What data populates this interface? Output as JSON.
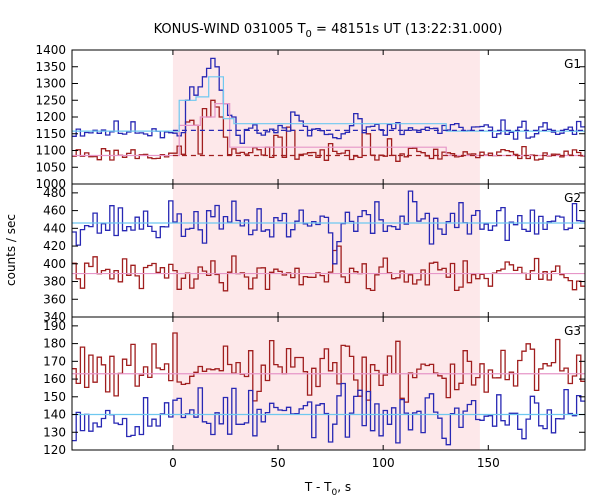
{
  "chart_data": {
    "type": "line",
    "title_main": "KONUS-WIND 031005 T",
    "title_sub": "0",
    "title_rest": " = 48151s UT (13:22:31.000)",
    "xlabel_main": "T - T",
    "xlabel_sub": "0",
    "xlabel_rest": ", s",
    "ylabel": "counts / sec",
    "xlim": [
      -48,
      196
    ],
    "x_ticks": [
      0,
      50,
      100,
      150
    ],
    "shaded_interval": [
      0,
      146
    ],
    "bin_width": 2,
    "colors": {
      "blue_series": "#2828b4",
      "red_series": "#a01e1e",
      "blue_fit": "#6ec8f0",
      "red_fit": "#e696c8",
      "shade": "#fde8ea"
    },
    "panels": [
      {
        "label": "G1",
        "ylim": [
          1000,
          1400
        ],
        "yticks": [
          1000,
          1050,
          1100,
          1150,
          1200,
          1250,
          1300,
          1350,
          1400
        ],
        "blue": {
          "base": 1160,
          "noise": 14,
          "seed": 11,
          "peaks": [
            [
              6,
              1250
            ],
            [
              8,
              1290
            ],
            [
              10,
              1265
            ],
            [
              12,
              1290
            ],
            [
              14,
              1320
            ],
            [
              16,
              1345
            ],
            [
              18,
              1375
            ],
            [
              20,
              1350
            ],
            [
              22,
              1280
            ],
            [
              24,
              1240
            ],
            [
              26,
              1205
            ],
            [
              28,
              1200
            ],
            [
              56,
              1215
            ],
            [
              58,
              1205
            ],
            [
              86,
              1210
            ],
            [
              88,
              1195
            ]
          ]
        },
        "red": {
          "base": 1090,
          "noise": 11,
          "seed": 23,
          "peaks": [
            [
              6,
              1185
            ],
            [
              8,
              1190
            ],
            [
              10,
              1175
            ],
            [
              14,
              1225
            ],
            [
              16,
              1200
            ],
            [
              18,
              1250
            ],
            [
              20,
              1230
            ],
            [
              22,
              1200
            ],
            [
              24,
              1140
            ],
            [
              48,
              1145
            ],
            [
              50,
              1140
            ],
            [
              54,
              1170
            ],
            [
              56,
              1160
            ],
            [
              90,
              1160
            ],
            [
              92,
              1150
            ],
            [
              102,
              1135
            ]
          ]
        },
        "blue_fit": {
          "type": "step",
          "value": 1158,
          "box": [
            [
              3,
              11,
              1250
            ],
            [
              11,
              17,
              1260
            ],
            [
              17,
              24,
              1320
            ],
            [
              24,
              29,
              1195
            ],
            [
              29,
              130,
              1180
            ]
          ]
        },
        "red_fit": {
          "type": "step",
          "value": 1085,
          "box": [
            [
              3,
              13,
              1175
            ],
            [
              13,
              20,
              1200
            ],
            [
              20,
              27,
              1240
            ],
            [
              27,
              130,
              1110
            ]
          ]
        },
        "blue_bkg": 1160,
        "red_bkg": 1085
      },
      {
        "label": "G2",
        "ylim": [
          340,
          490
        ],
        "yticks": [
          340,
          360,
          380,
          400,
          420,
          440,
          460,
          480
        ],
        "blue": {
          "base": 446,
          "noise": 11,
          "seed": 37,
          "peaks": [
            [
              76,
              400
            ],
            [
              78,
              425
            ],
            [
              112,
              482
            ],
            [
              114,
              470
            ]
          ]
        },
        "red": {
          "base": 389,
          "noise": 9,
          "seed": 41,
          "peaks": [
            [
              76,
              415
            ],
            [
              78,
              420
            ],
            [
              134,
              370
            ]
          ]
        },
        "blue_fit": {
          "type": "flat",
          "value": 446
        },
        "red_fit": {
          "type": "flat",
          "value": 389
        }
      },
      {
        "label": "G3",
        "ylim": [
          120,
          195
        ],
        "yticks": [
          120,
          130,
          140,
          150,
          160,
          170,
          180,
          190
        ],
        "blue": {
          "base": 140,
          "noise": 7,
          "seed": 53,
          "peaks": [
            [
              12,
              155
            ],
            [
              38,
              128
            ],
            [
              66,
              127
            ],
            [
              106,
              124
            ],
            [
              130,
              123
            ]
          ]
        },
        "red": {
          "base": 163,
          "noise": 9,
          "seed": 61,
          "peaks": [
            [
              0,
              186
            ],
            [
              36,
              176
            ],
            [
              72,
              177
            ],
            [
              102,
              173
            ],
            [
              138,
              176
            ],
            [
              -44,
              178
            ]
          ]
        },
        "blue_fit": {
          "type": "flat",
          "value": 140
        },
        "red_fit": {
          "type": "flat",
          "value": 163
        }
      }
    ]
  }
}
